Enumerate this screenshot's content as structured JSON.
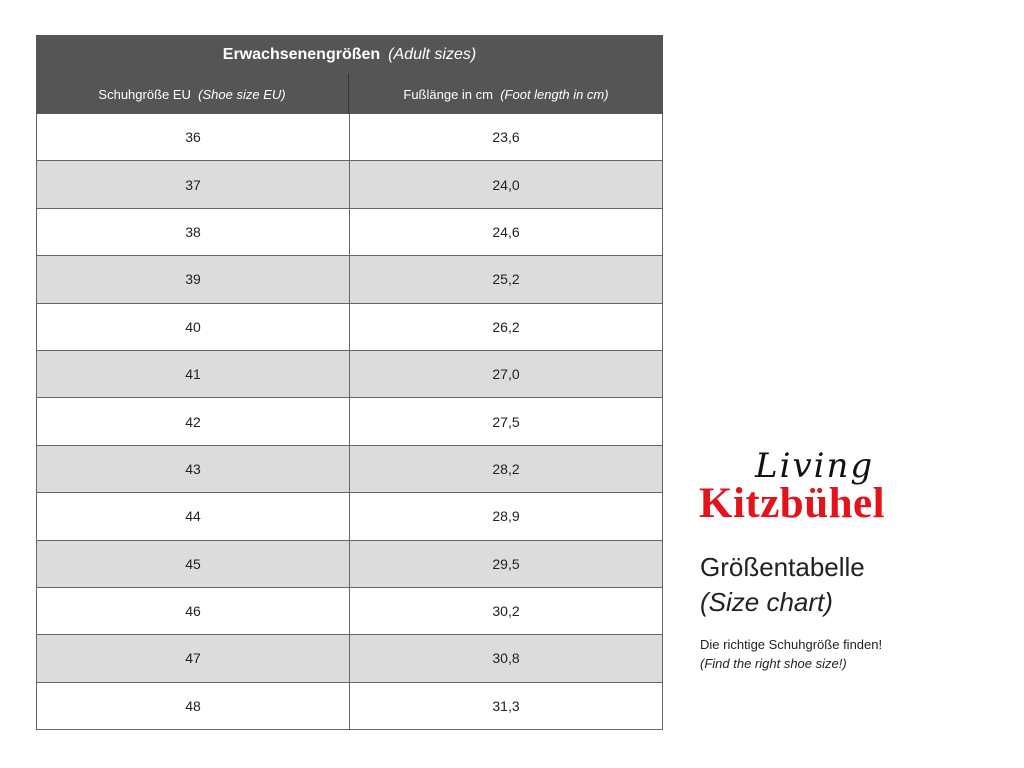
{
  "table": {
    "title": "Erwachsenengrößen",
    "title_en": "(Adult sizes)",
    "headers": [
      {
        "de": "Schuhgröße EU",
        "en": "(Shoe size EU)"
      },
      {
        "de": "Fußlänge in cm",
        "en": "(Foot length in cm)"
      }
    ],
    "rows": [
      [
        "36",
        "23,6"
      ],
      [
        "37",
        "24,0"
      ],
      [
        "38",
        "24,6"
      ],
      [
        "39",
        "25,2"
      ],
      [
        "40",
        "26,2"
      ],
      [
        "41",
        "27,0"
      ],
      [
        "42",
        "27,5"
      ],
      [
        "43",
        "28,2"
      ],
      [
        "44",
        "28,9"
      ],
      [
        "45",
        "29,5"
      ],
      [
        "46",
        "30,2"
      ],
      [
        "47",
        "30,8"
      ],
      [
        "48",
        "31,3"
      ]
    ],
    "header_color": "#555555",
    "stripe_color": "#dcdcdc"
  },
  "logo": {
    "script": "Living",
    "name": "Kitzbühel",
    "brand_color": "#e3121b"
  },
  "side": {
    "heading": "Größentabelle",
    "heading_en": "(Size chart)",
    "tagline": "Die richtige Schuhgröße finden!",
    "tagline_en": "(Find the right shoe size!)"
  }
}
